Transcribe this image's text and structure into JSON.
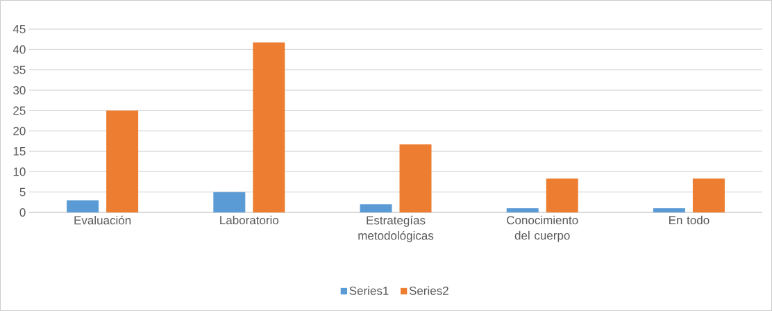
{
  "chart_data": {
    "type": "bar",
    "categories": [
      "Evaluación",
      "Laboratorio",
      "Estrategías metodológicas",
      "Conocimiento del cuerpo",
      "En todo"
    ],
    "series": [
      {
        "name": "Series1",
        "color": "#5b9bd5",
        "values": [
          3,
          5,
          2,
          1,
          1
        ]
      },
      {
        "name": "Series2",
        "color": "#ed7d31",
        "values": [
          25,
          41.7,
          16.7,
          8.3,
          8.3
        ]
      }
    ],
    "ylim": [
      0,
      45
    ],
    "yticks": [
      0,
      5,
      10,
      15,
      20,
      25,
      30,
      35,
      40,
      45
    ],
    "grid": "y",
    "legend": "bottom"
  }
}
